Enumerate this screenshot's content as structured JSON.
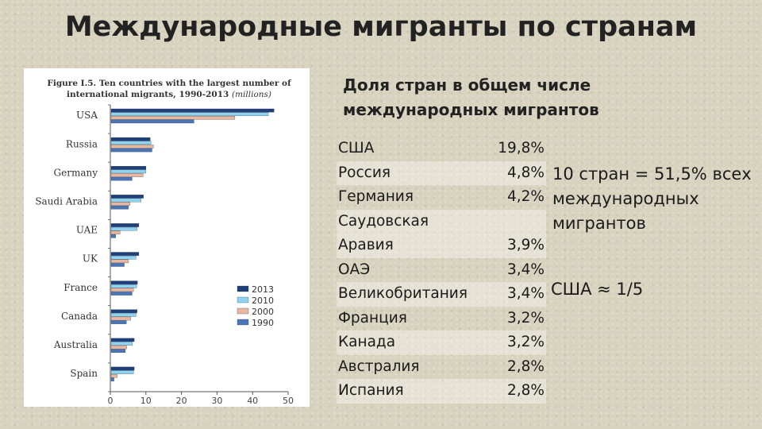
{
  "slide": {
    "title": "Международные мигранты по странам",
    "subtitle": "Доля стран в общем числе международных мигрантов"
  },
  "chart_data": {
    "type": "bar",
    "orientation": "horizontal",
    "title": "Figure I.5. Ten countries with the largest number of international migrants, 1990-2013",
    "title_units": "(millions)",
    "categories": [
      "USA",
      "Russia",
      "Germany",
      "Saudi Arabia",
      "UAE",
      "UK",
      "France",
      "Canada",
      "Australia",
      "Spain"
    ],
    "series": [
      {
        "name": "2013",
        "color": "#1f3f7a",
        "values": [
          45.8,
          11.0,
          9.8,
          9.1,
          7.8,
          7.8,
          7.4,
          7.3,
          6.5,
          6.5
        ]
      },
      {
        "name": "2010",
        "color": "#8fd3ee",
        "values": [
          44.2,
          11.2,
          9.8,
          8.4,
          7.3,
          7.0,
          7.2,
          7.0,
          6.0,
          6.3
        ]
      },
      {
        "name": "2000",
        "color": "#e9b79e",
        "values": [
          34.8,
          11.9,
          9.0,
          5.3,
          2.5,
          4.9,
          6.3,
          5.5,
          4.4,
          1.7
        ]
      },
      {
        "name": "1990",
        "color": "#4a76b8",
        "values": [
          23.3,
          11.5,
          5.9,
          4.9,
          1.3,
          3.7,
          5.9,
          4.3,
          4.0,
          0.8
        ]
      }
    ],
    "xlim": [
      0,
      50
    ],
    "xticks": [
      "0",
      "10",
      "20",
      "30",
      "40",
      "50"
    ],
    "grid": false,
    "legend_position": "bottom-right"
  },
  "table": {
    "rows": [
      {
        "country": "США",
        "share": "19,8%"
      },
      {
        "country": "Россия",
        "share": "4,8%"
      },
      {
        "country": "Германия",
        "share": "4,2%"
      },
      {
        "country": "Саудовская Аравия",
        "share": "3,9%"
      },
      {
        "country": "ОАЭ",
        "share": "3,4%"
      },
      {
        "country": "Великобритания",
        "share": "3,4%"
      },
      {
        "country": "Франция",
        "share": "3,2%"
      },
      {
        "country": "Канада",
        "share": "3,2%"
      },
      {
        "country": "Австралия",
        "share": "2,8%"
      },
      {
        "country": "Испания",
        "share": "2,8%"
      }
    ]
  },
  "notes": {
    "n1_line1": "10 стран = 51,5% всех",
    "n1_line2": "международных",
    "n1_line3": "мигрантов",
    "n2": "США ≈ 1/5"
  }
}
